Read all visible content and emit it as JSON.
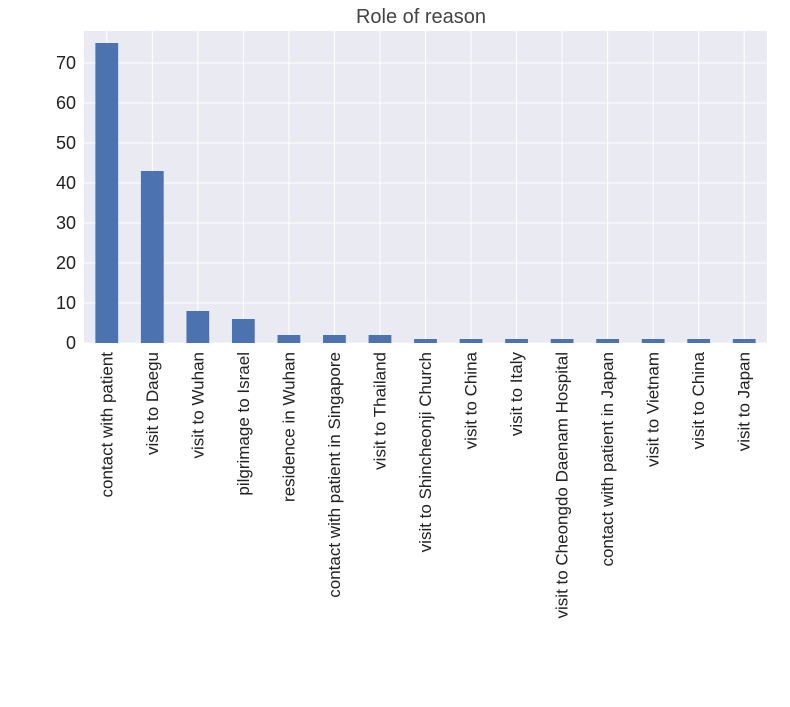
{
  "chart_data": {
    "type": "bar",
    "title": "Role of reason",
    "xlabel": "",
    "ylabel": "",
    "categories": [
      "contact with patient",
      "visit to Daegu",
      "visit to Wuhan",
      "pilgrimage to Israel",
      "residence in Wuhan",
      "contact with patient in Singapore",
      "visit to Thailand",
      "visit to Shincheonji Church",
      "visit to China",
      "visit to Italy",
      "visit to Cheongdo Daenam Hospital",
      "contact with patient in Japan",
      "visit to Vietnam",
      "visit to China",
      "visit to Japan"
    ],
    "values": [
      75,
      43,
      8,
      6,
      2,
      2,
      2,
      1,
      1,
      1,
      1,
      1,
      1,
      1,
      1
    ],
    "ylim": [
      0,
      78
    ],
    "yticks": [
      0,
      10,
      20,
      30,
      40,
      50,
      60,
      70
    ],
    "grid": true,
    "legend": "none",
    "colors": {
      "bar": "#4c72b0",
      "plot_background": "#eaeaf2",
      "grid": "#ffffff"
    }
  }
}
